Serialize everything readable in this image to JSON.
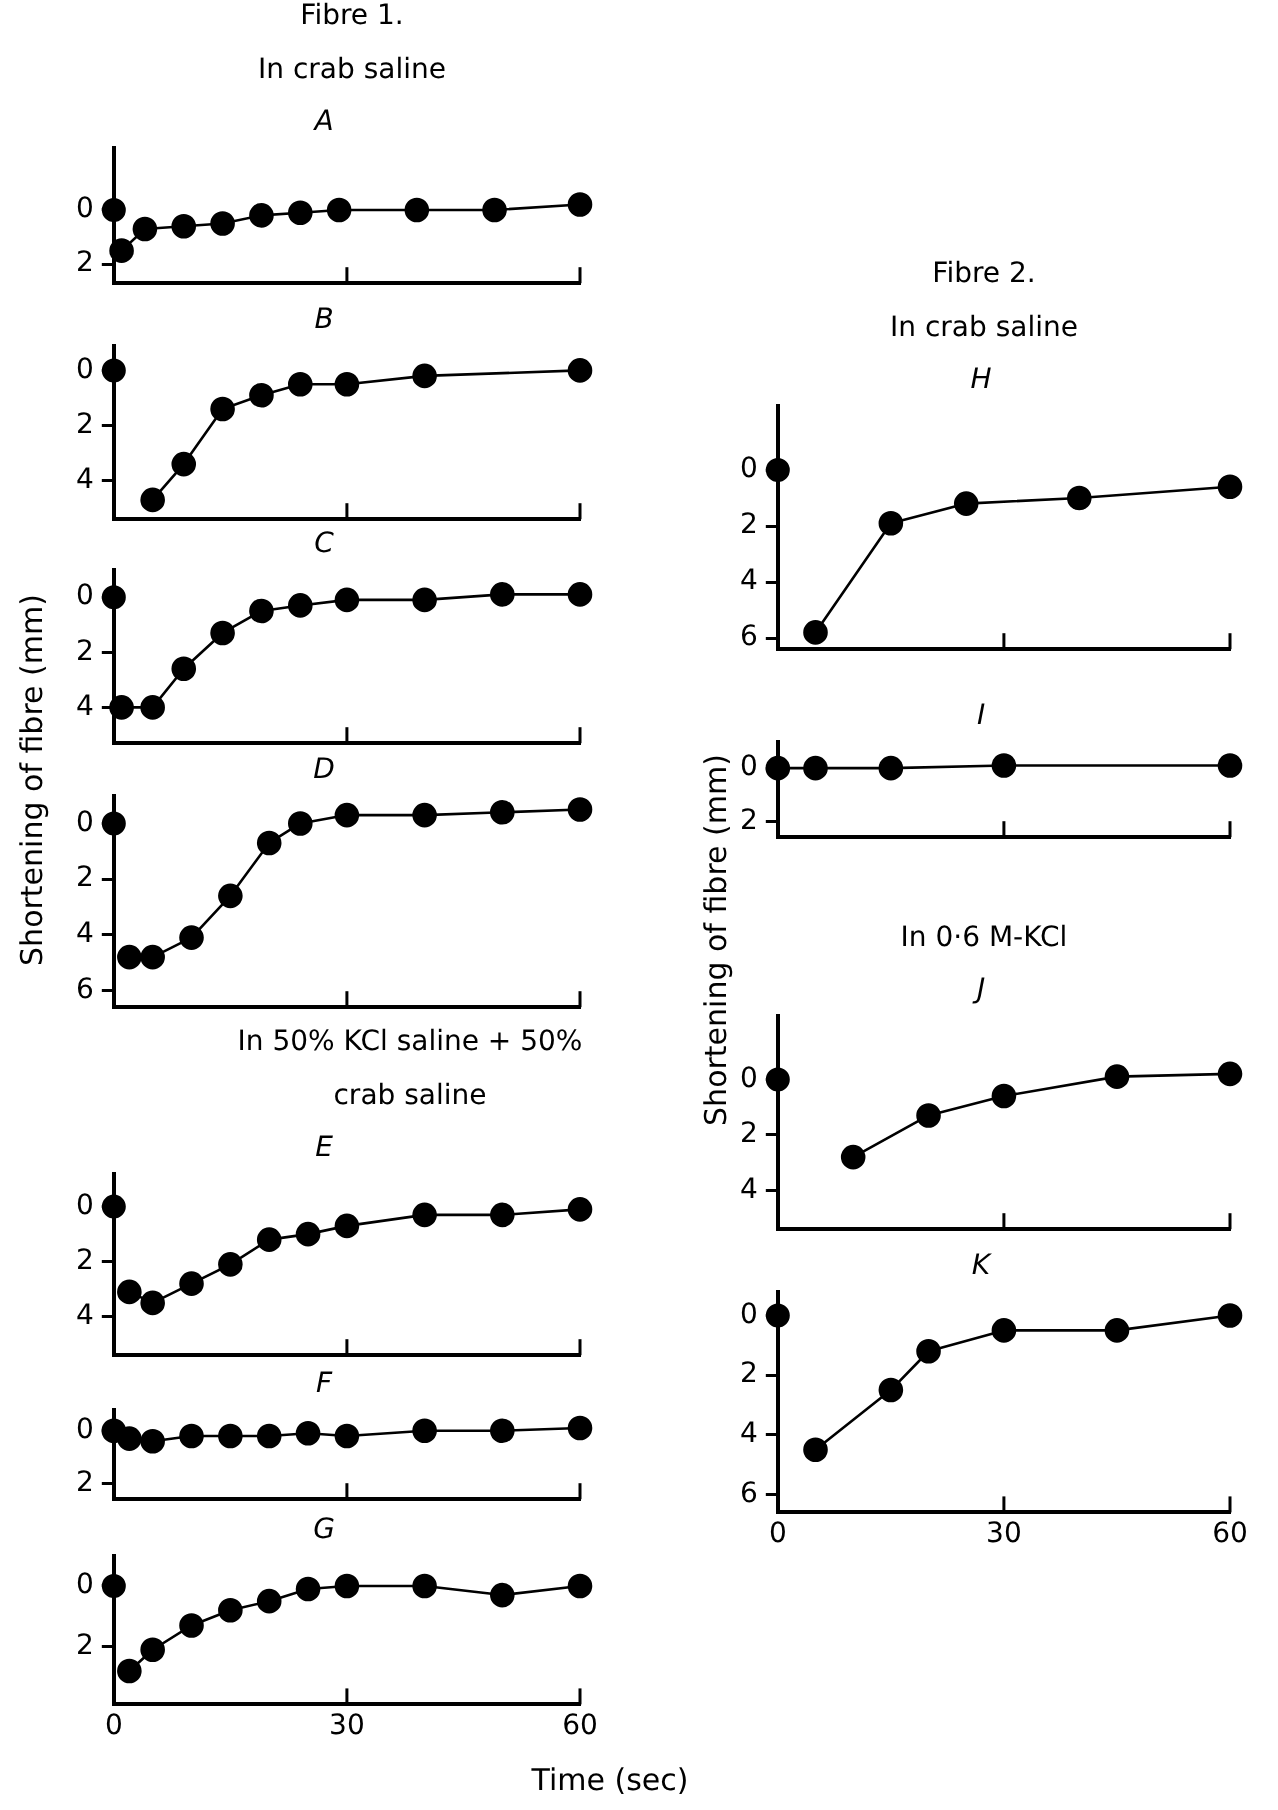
{
  "chart_data": [
    {
      "type": "line",
      "title": "A",
      "annotations": [
        "Fibre 1.",
        "In crab saline"
      ],
      "marker": "circle",
      "tick_labels": "y",
      "xlim": [
        0,
        60
      ],
      "xticks": [
        0,
        30,
        60
      ],
      "ylim": [
        2.7,
        -2.3
      ],
      "yticks": [
        0,
        2
      ],
      "series": [
        {
          "type": "scatter",
          "color": "#000000",
          "x": [
            0
          ],
          "values": [
            0
          ]
        },
        {
          "type": "line",
          "color": "#000000",
          "x": [
            1,
            4,
            9,
            14,
            19,
            24,
            29,
            39,
            49,
            60
          ],
          "values": [
            1.5,
            0.7,
            0.6,
            0.5,
            0.2,
            0.1,
            0,
            0,
            0,
            -0.2
          ]
        }
      ]
    },
    {
      "type": "line",
      "title": "B",
      "marker": "circle",
      "tick_labels": "y",
      "xlim": [
        0,
        60
      ],
      "xticks": [
        0,
        30,
        60
      ],
      "ylim": [
        5.4,
        -0.9
      ],
      "yticks": [
        0,
        2,
        4
      ],
      "series": [
        {
          "type": "scatter",
          "color": "#000000",
          "x": [
            0
          ],
          "values": [
            0
          ]
        },
        {
          "type": "line",
          "color": "#000000",
          "x": [
            5,
            9,
            14,
            19,
            24,
            30,
            40,
            60
          ],
          "values": [
            4.7,
            3.4,
            1.4,
            0.9,
            0.5,
            0.5,
            0.2,
            0
          ]
        }
      ]
    },
    {
      "type": "line",
      "title": "C",
      "marker": "circle",
      "tick_labels": "y",
      "xlim": [
        0,
        60
      ],
      "xticks": [
        0,
        30,
        60
      ],
      "ylim": [
        5.3,
        -1
      ],
      "yticks": [
        0,
        2,
        4
      ],
      "series": [
        {
          "type": "scatter",
          "color": "#000000",
          "x": [
            0
          ],
          "values": [
            0
          ]
        },
        {
          "type": "line",
          "color": "#000000",
          "x": [
            1,
            5,
            9,
            14,
            19,
            24,
            30,
            40,
            50,
            60
          ],
          "values": [
            4,
            4,
            2.6,
            1.3,
            0.5,
            0.3,
            0.1,
            0.1,
            -0.1,
            -0.1
          ]
        }
      ]
    },
    {
      "type": "line",
      "title": "D",
      "ylabel": "Shortening of fibre (mm)",
      "marker": "circle",
      "tick_labels": "y",
      "xlim": [
        0,
        60
      ],
      "xticks": [
        0,
        30,
        60
      ],
      "ylim": [
        6.6,
        -1
      ],
      "yticks": [
        0,
        2,
        4,
        6
      ],
      "series": [
        {
          "type": "scatter",
          "color": "#000000",
          "x": [
            0
          ],
          "values": [
            0
          ]
        },
        {
          "type": "line",
          "color": "#000000",
          "x": [
            2,
            5,
            10,
            15,
            20,
            24,
            30,
            40,
            50,
            60
          ],
          "values": [
            4.8,
            4.8,
            4.1,
            2.6,
            0.7,
            0,
            -0.3,
            -0.3,
            -0.4,
            -0.5
          ]
        }
      ]
    },
    {
      "type": "line",
      "title": "E",
      "annotations": [
        "In 50% KCl saline + 50% crab saline"
      ],
      "marker": "circle",
      "tick_labels": "y",
      "xlim": [
        0,
        60
      ],
      "xticks": [
        0,
        30,
        60
      ],
      "ylim": [
        5.4,
        -1.2
      ],
      "yticks": [
        0,
        2,
        4
      ],
      "series": [
        {
          "type": "scatter",
          "color": "#000000",
          "x": [
            0
          ],
          "values": [
            0
          ]
        },
        {
          "type": "line",
          "color": "#000000",
          "x": [
            2,
            5,
            10,
            15,
            20,
            25,
            30,
            40,
            50,
            60
          ],
          "values": [
            3.1,
            3.5,
            2.8,
            2.1,
            1.2,
            1,
            0.7,
            0.3,
            0.3,
            0.1
          ]
        }
      ]
    },
    {
      "type": "line",
      "title": "F",
      "marker": "circle",
      "tick_labels": "y",
      "xlim": [
        0,
        60
      ],
      "xticks": [
        0,
        30,
        60
      ],
      "ylim": [
        2.6,
        -0.8
      ],
      "yticks": [
        0,
        2
      ],
      "series": [
        {
          "type": "line",
          "color": "#000000",
          "x": [
            0,
            2,
            5,
            10,
            15,
            20,
            25,
            30,
            40,
            50,
            60
          ],
          "values": [
            0,
            0.3,
            0.4,
            0.2,
            0.2,
            0.2,
            0.1,
            0.2,
            0,
            0,
            -0.1
          ]
        }
      ]
    },
    {
      "type": "line",
      "title": "G",
      "xlabel": "Time (sec)",
      "marker": "circle",
      "xlim": [
        0,
        60
      ],
      "xticks": [
        0,
        30,
        60
      ],
      "ylim": [
        3.9,
        -1
      ],
      "yticks": [
        0,
        2
      ],
      "series": [
        {
          "type": "scatter",
          "color": "#000000",
          "x": [
            0
          ],
          "values": [
            0
          ]
        },
        {
          "type": "line",
          "color": "#000000",
          "x": [
            2,
            5,
            10,
            15,
            20,
            25,
            30,
            40,
            50,
            60
          ],
          "values": [
            2.8,
            2.1,
            1.3,
            0.8,
            0.5,
            0.1,
            0,
            0,
            0.3,
            0
          ]
        }
      ]
    },
    {
      "type": "line",
      "title": "H",
      "annotations": [
        "Fibre 2.",
        "In crab saline"
      ],
      "marker": "circle",
      "tick_labels": "y",
      "xlim": [
        0,
        60
      ],
      "xticks": [
        0,
        30,
        60
      ],
      "ylim": [
        6.4,
        -2.3
      ],
      "yticks": [
        0,
        2,
        4,
        6
      ],
      "series": [
        {
          "type": "scatter",
          "color": "#000000",
          "x": [
            0
          ],
          "values": [
            0
          ]
        },
        {
          "type": "line",
          "color": "#000000",
          "x": [
            5,
            15,
            25,
            40,
            60
          ],
          "values": [
            5.8,
            1.9,
            1.2,
            1,
            0.6
          ]
        }
      ]
    },
    {
      "type": "line",
      "title": "I",
      "marker": "circle",
      "tick_labels": "y",
      "xlim": [
        0,
        60
      ],
      "xticks": [
        0,
        30,
        60
      ],
      "ylim": [
        2.6,
        -1
      ],
      "yticks": [
        0,
        2
      ],
      "series": [
        {
          "type": "line",
          "color": "#000000",
          "x": [
            0,
            5,
            15,
            30,
            60
          ],
          "values": [
            0,
            0,
            0,
            -0.1,
            -0.1
          ]
        }
      ]
    },
    {
      "type": "line",
      "title": "J",
      "annotations": [
        "In 0·6 M-KCl"
      ],
      "ylabel": "Shortening of fibre (mm)",
      "marker": "circle",
      "tick_labels": "y",
      "xlim": [
        0,
        60
      ],
      "xticks": [
        0,
        30,
        60
      ],
      "ylim": [
        5.4,
        -2.3
      ],
      "yticks": [
        0,
        2,
        4
      ],
      "series": [
        {
          "type": "scatter",
          "color": "#000000",
          "x": [
            0
          ],
          "values": [
            0
          ]
        },
        {
          "type": "line",
          "color": "#000000",
          "x": [
            10,
            20,
            30,
            45,
            60
          ],
          "values": [
            2.8,
            1.3,
            0.6,
            -0.1,
            -0.2
          ]
        }
      ]
    },
    {
      "type": "line",
      "title": "K",
      "marker": "circle",
      "xlim": [
        0,
        60
      ],
      "xticks": [
        0,
        30,
        60
      ],
      "ylim": [
        6.6,
        -0.8
      ],
      "yticks": [
        0,
        2,
        4,
        6
      ],
      "series": [
        {
          "type": "scatter",
          "color": "#000000",
          "x": [
            0
          ],
          "values": [
            0
          ]
        },
        {
          "type": "line",
          "color": "#000000",
          "x": [
            5,
            15,
            20,
            30,
            45,
            60
          ],
          "values": [
            4.5,
            2.5,
            1.2,
            0.5,
            0.5,
            0
          ]
        }
      ]
    }
  ]
}
